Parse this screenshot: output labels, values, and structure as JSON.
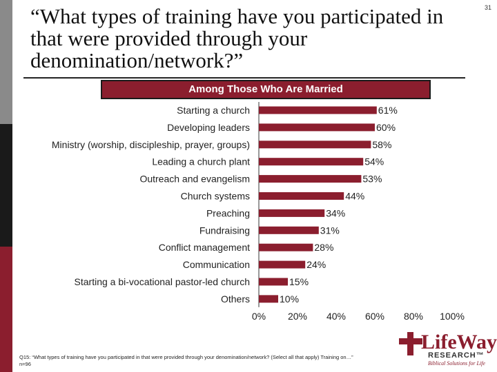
{
  "page_number": "31",
  "title": "“What types of training have you participated in that were provided through your denomination/network?”",
  "footnote": "Q15: “What types of training have you participated in that were provided through your denomination/network? (Select all that apply) Training on…” n=96",
  "logo": {
    "word": "LifeWay",
    "research": "RESEARCH™",
    "tagline": "Biblical Solutions for Life"
  },
  "colors": {
    "bar": "#8b1e2e",
    "accent": "#8b1e2e"
  },
  "chart_data": {
    "type": "bar",
    "orientation": "horizontal",
    "subtitle": "Among Those Who Are Married",
    "categories": [
      "Starting a church",
      "Developing leaders",
      "Ministry (worship, discipleship, prayer, groups)",
      "Leading a church plant",
      "Outreach and evangelism",
      "Church systems",
      "Preaching",
      "Fundraising",
      "Conflict management",
      "Communication",
      "Starting a bi-vocational pastor-led church",
      "Others"
    ],
    "values": [
      61,
      60,
      58,
      54,
      53,
      44,
      34,
      31,
      28,
      24,
      15,
      10
    ],
    "data_labels": [
      "61%",
      "60%",
      "58%",
      "54%",
      "53%",
      "44%",
      "34%",
      "31%",
      "28%",
      "24%",
      "15%",
      "10%"
    ],
    "xlim": [
      0,
      100
    ],
    "ticks": [
      0,
      20,
      40,
      60,
      80,
      100
    ],
    "tick_labels": [
      "0%",
      "20%",
      "40%",
      "60%",
      "80%",
      "100%"
    ],
    "grid": false,
    "legend": "none"
  }
}
